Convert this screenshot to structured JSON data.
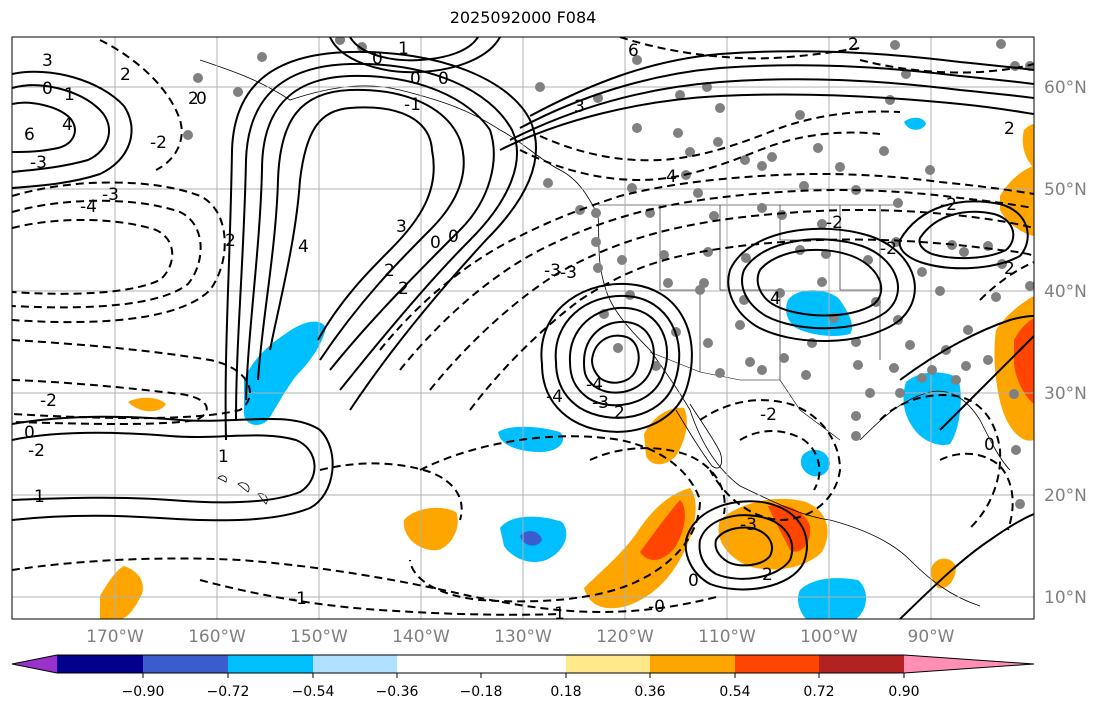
{
  "title": "2025092000 F084",
  "map": {
    "lon_labels": [
      "170°W",
      "160°W",
      "150°W",
      "140°W",
      "130°W",
      "120°W",
      "110°W",
      "100°W",
      "90°W"
    ],
    "lat_labels": [
      "60°N",
      "50°N",
      "40°N",
      "30°N",
      "20°N",
      "10°N"
    ],
    "label_color": "#808080",
    "contour_labels": [
      "3",
      "2",
      "2",
      "0",
      "1",
      "6",
      "0",
      "0",
      "1",
      "2",
      "0",
      "4",
      "-2",
      "-3",
      "-4",
      "-3",
      "2",
      "4",
      "3",
      "2",
      "2",
      "0",
      "0",
      "3",
      "0",
      "6",
      "4",
      "-3",
      "-4",
      "-3",
      "4",
      "2",
      "2",
      "-3",
      "1",
      "0",
      "-2",
      "-3",
      "-4",
      "-2",
      "0",
      "-2",
      "2",
      "1",
      "-1",
      "-1",
      "-2",
      "-2",
      "-2",
      "2",
      "0",
      "-1",
      "-0"
    ]
  },
  "colorbar": {
    "ticks": [
      "−0.90",
      "−0.72",
      "−0.54",
      "−0.36",
      "−0.18",
      "0.18",
      "0.36",
      "0.54",
      "0.72",
      "0.90"
    ],
    "colors": [
      "#9932cc",
      "#00008b",
      "#3b5ccc",
      "#00bfff",
      "#b0e0ff",
      "#ffffff",
      "#ffe98a",
      "#ffa500",
      "#ff4500",
      "#b22222",
      "#ff8fb5"
    ]
  }
}
